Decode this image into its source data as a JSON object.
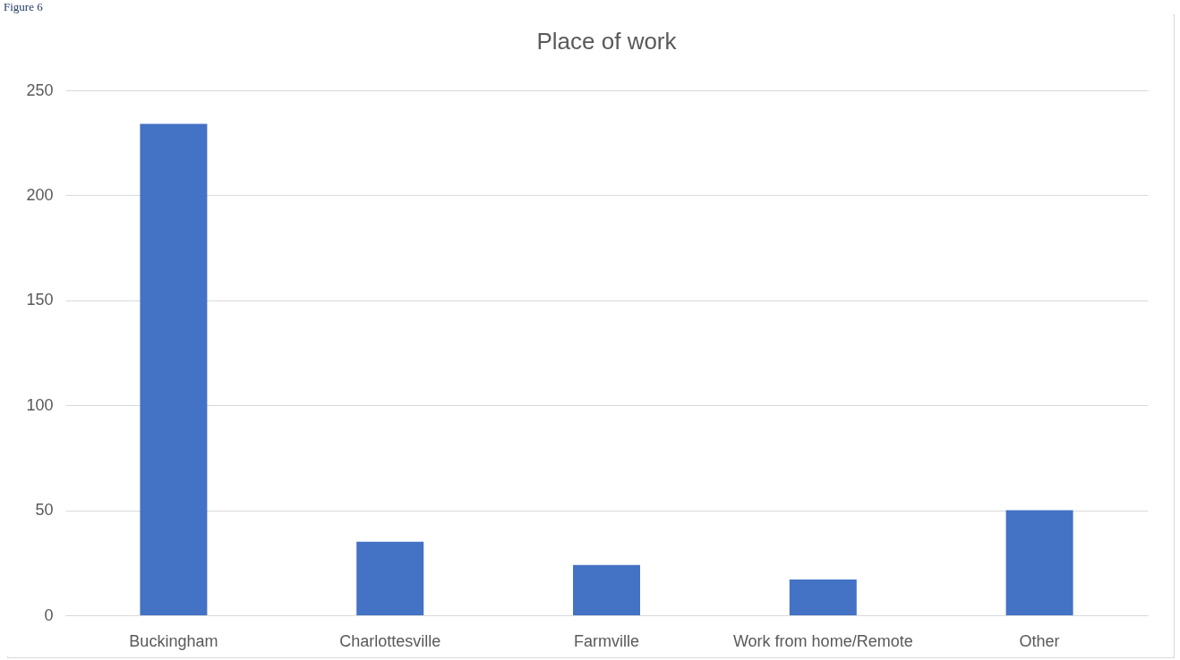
{
  "chart_data": {
    "type": "bar",
    "title": "Place of work",
    "categories": [
      "Buckingham",
      "Charlottesville",
      "Farmville",
      "Work from home/Remote",
      "Other"
    ],
    "values": [
      234,
      35,
      24,
      17,
      50
    ],
    "color": "#4472c4",
    "ylim": [
      0,
      250
    ],
    "yticks": [
      0,
      50,
      100,
      150,
      200,
      250
    ],
    "grid": "y",
    "annotations": [
      "Figure 6"
    ]
  }
}
